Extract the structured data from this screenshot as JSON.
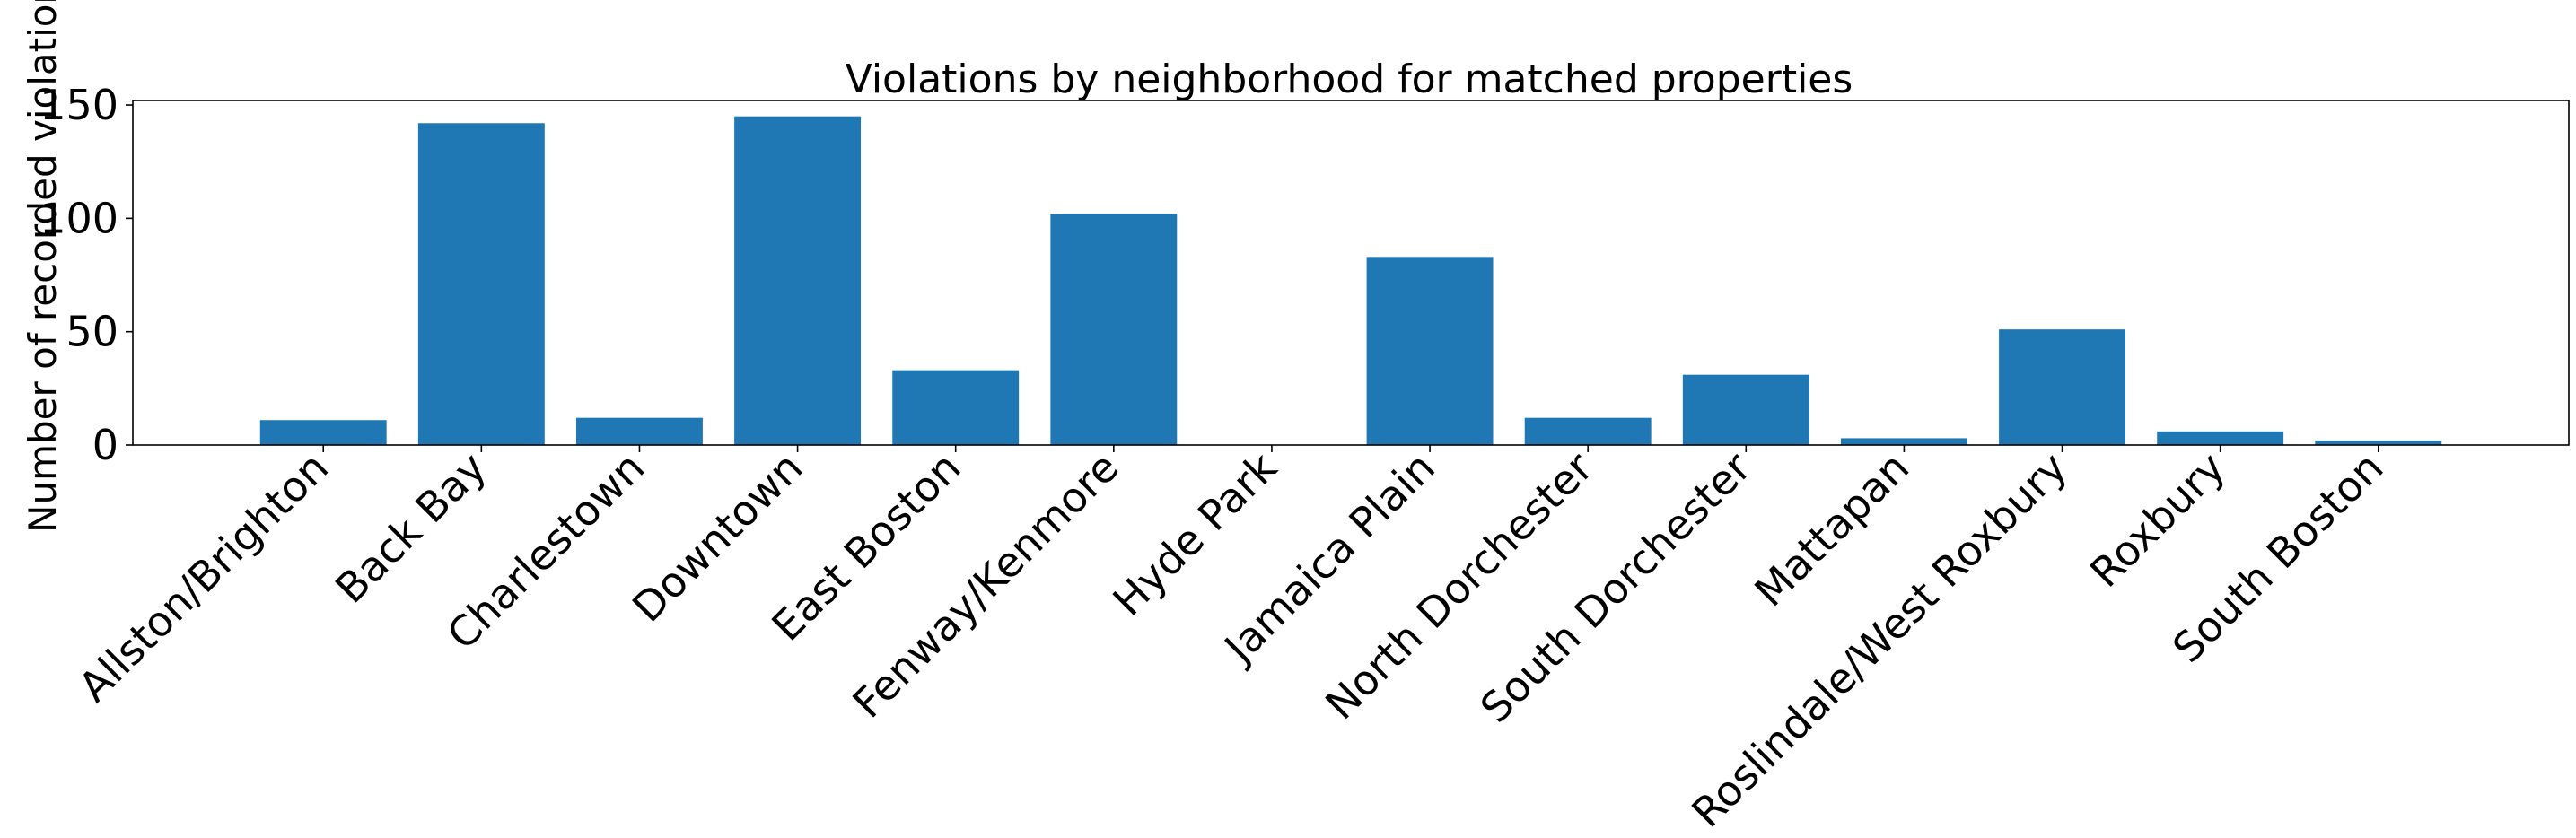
{
  "chart_data": {
    "type": "bar",
    "title": "Violations by neighborhood for matched properties",
    "xlabel": "",
    "ylabel": "Number of recorded violations",
    "categories": [
      "Allston/Brighton",
      "Back Bay",
      "Charlestown",
      "Downtown",
      "East Boston",
      "Fenway/Kenmore",
      "Hyde Park",
      "Jamaica Plain",
      "North Dorchester",
      "South Dorchester",
      "Mattapan",
      "Roslindale/West Roxbury",
      "Roxbury",
      "South Boston"
    ],
    "values": [
      11,
      142,
      12,
      145,
      33,
      102,
      0,
      83,
      12,
      31,
      3,
      51,
      6,
      2
    ],
    "ylim": [
      0,
      152
    ],
    "yticks": [
      0,
      50,
      100,
      150
    ],
    "bar_color": "#1f77b4",
    "grid": false,
    "legend": "none"
  }
}
